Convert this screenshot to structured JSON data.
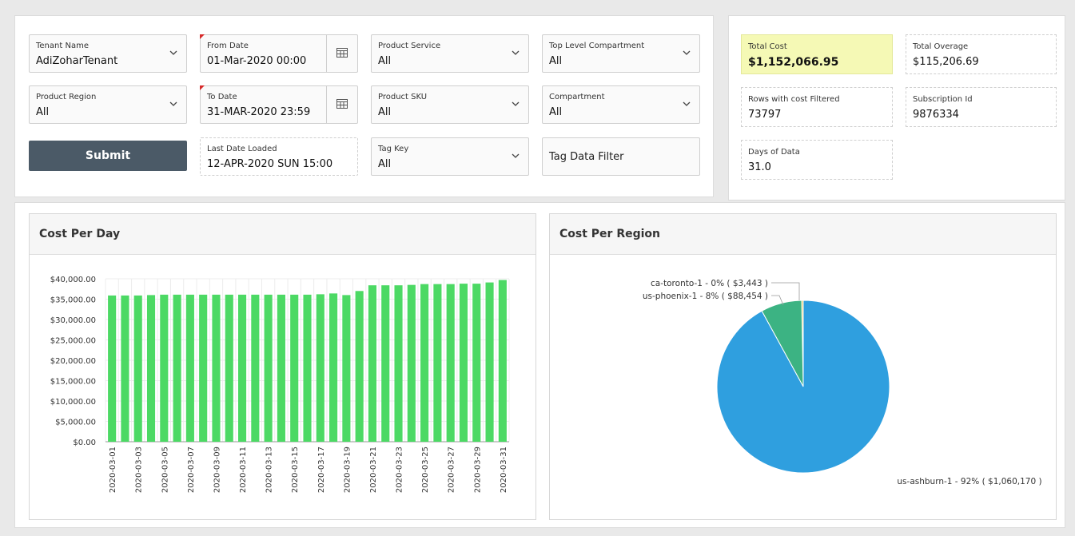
{
  "filters": {
    "tenant_name": {
      "label": "Tenant Name",
      "value": "AdiZoharTenant"
    },
    "from_date": {
      "label": "From Date",
      "value": "01-Mar-2020 00:00"
    },
    "product_service": {
      "label": "Product Service",
      "value": "All"
    },
    "top_level_compartment": {
      "label": "Top Level Compartment",
      "value": "All"
    },
    "product_region": {
      "label": "Product Region",
      "value": "All"
    },
    "to_date": {
      "label": "To Date",
      "value": "31-MAR-2020 23:59"
    },
    "product_sku": {
      "label": "Product SKU",
      "value": "All"
    },
    "compartment": {
      "label": "Compartment",
      "value": "All"
    },
    "submit_label": "Submit",
    "last_date_loaded": {
      "label": "Last Date Loaded",
      "value": "12-APR-2020 SUN 15:00"
    },
    "tag_key": {
      "label": "Tag Key",
      "value": "All"
    },
    "tag_data_filter": {
      "label": "Tag Data Filter"
    }
  },
  "summary": {
    "total_cost": {
      "label": "Total Cost",
      "value": "$1,152,066.95"
    },
    "total_overage": {
      "label": "Total Overage",
      "value": "$115,206.69"
    },
    "rows_filtered": {
      "label": "Rows with cost Filtered",
      "value": "73797"
    },
    "subscription_id": {
      "label": "Subscription Id",
      "value": "9876334"
    },
    "days_of_data": {
      "label": "Days of Data",
      "value": "31.0"
    }
  },
  "colors": {
    "bar": "#4cd964",
    "highlight": "#f5f9b5",
    "submit": "#4b5a67",
    "pie_ashburn": "#2f9fdf",
    "pie_phoenix": "#3cb383",
    "pie_toronto": "#f0c24b"
  },
  "chart_data": [
    {
      "type": "bar",
      "title": "Cost Per Day",
      "xlabel": "",
      "ylabel": "",
      "ylim": [
        0,
        40000
      ],
      "yticks": [
        "$0.00",
        "$5,000.00",
        "$10,000.00",
        "$15,000.00",
        "$20,000.00",
        "$25,000.00",
        "$30,000.00",
        "$35,000.00",
        "$40,000.00"
      ],
      "categories": [
        "2020-03-01",
        "2020-03-02",
        "2020-03-03",
        "2020-03-04",
        "2020-03-05",
        "2020-03-06",
        "2020-03-07",
        "2020-03-08",
        "2020-03-09",
        "2020-03-10",
        "2020-03-11",
        "2020-03-12",
        "2020-03-13",
        "2020-03-14",
        "2020-03-15",
        "2020-03-16",
        "2020-03-17",
        "2020-03-18",
        "2020-03-19",
        "2020-03-20",
        "2020-03-21",
        "2020-03-22",
        "2020-03-23",
        "2020-03-24",
        "2020-03-25",
        "2020-03-26",
        "2020-03-27",
        "2020-03-28",
        "2020-03-29",
        "2020-03-30",
        "2020-03-31"
      ],
      "tick_labels": [
        "2020-03-01",
        "2020-03-03",
        "2020-03-05",
        "2020-03-07",
        "2020-03-09",
        "2020-03-11",
        "2020-03-13",
        "2020-03-15",
        "2020-03-17",
        "2020-03-19",
        "2020-03-21",
        "2020-03-23",
        "2020-03-25",
        "2020-03-27",
        "2020-03-29",
        "2020-03-31"
      ],
      "values": [
        35900,
        35900,
        35900,
        36000,
        36100,
        36100,
        36100,
        36100,
        36100,
        36100,
        36100,
        36100,
        36100,
        36100,
        36100,
        36100,
        36200,
        36400,
        36000,
        37000,
        38400,
        38400,
        38400,
        38500,
        38700,
        38700,
        38700,
        38800,
        38800,
        39100,
        39700
      ]
    },
    {
      "type": "pie",
      "title": "Cost Per Region",
      "slices": [
        {
          "name": "ca-toronto-1",
          "value": 3443,
          "label": "ca-toronto-1 - 0% ( $3,443 )"
        },
        {
          "name": "us-phoenix-1",
          "value": 88454,
          "label": "us-phoenix-1 - 8% ( $88,454 )"
        },
        {
          "name": "us-ashburn-1",
          "value": 1060170,
          "label": "us-ashburn-1 - 92% ( $1,060,170 )"
        }
      ]
    }
  ]
}
